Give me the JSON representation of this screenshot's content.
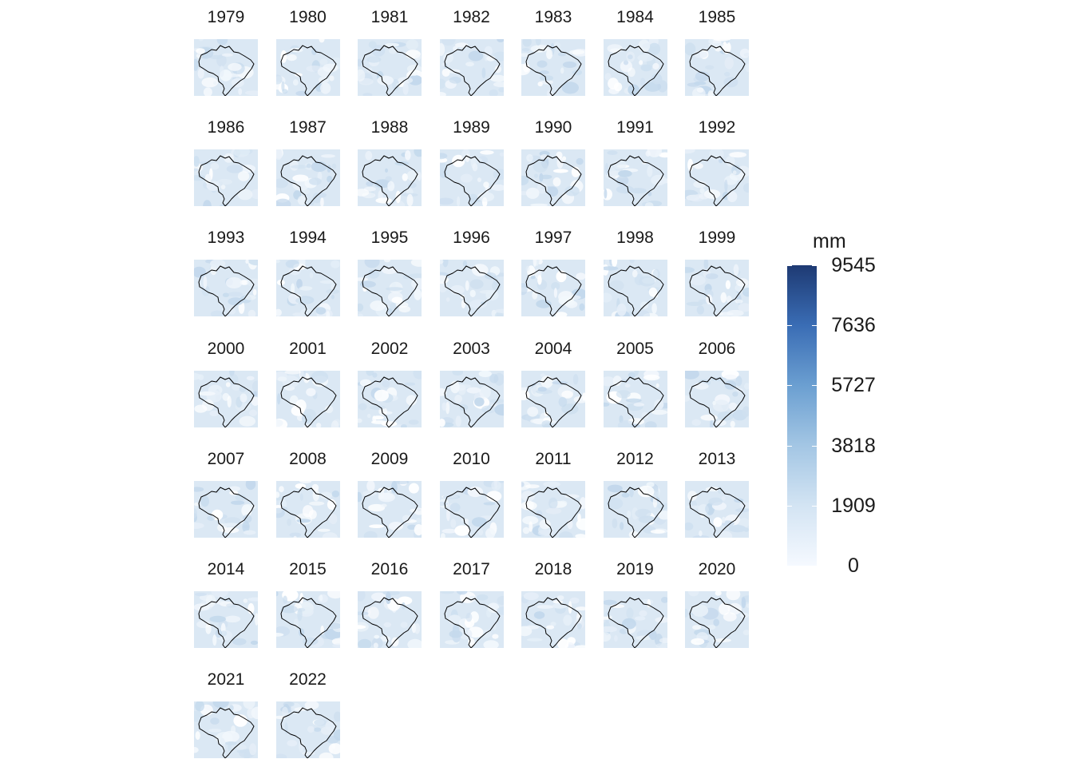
{
  "panels": [
    {
      "year": "1979"
    },
    {
      "year": "1980"
    },
    {
      "year": "1981"
    },
    {
      "year": "1982"
    },
    {
      "year": "1983"
    },
    {
      "year": "1984"
    },
    {
      "year": "1985"
    },
    {
      "year": "1986"
    },
    {
      "year": "1987"
    },
    {
      "year": "1988"
    },
    {
      "year": "1989"
    },
    {
      "year": "1990"
    },
    {
      "year": "1991"
    },
    {
      "year": "1992"
    },
    {
      "year": "1993"
    },
    {
      "year": "1994"
    },
    {
      "year": "1995"
    },
    {
      "year": "1996"
    },
    {
      "year": "1997"
    },
    {
      "year": "1998"
    },
    {
      "year": "1999"
    },
    {
      "year": "2000"
    },
    {
      "year": "2001"
    },
    {
      "year": "2002"
    },
    {
      "year": "2003"
    },
    {
      "year": "2004"
    },
    {
      "year": "2005"
    },
    {
      "year": "2006"
    },
    {
      "year": "2007"
    },
    {
      "year": "2008"
    },
    {
      "year": "2009"
    },
    {
      "year": "2010"
    },
    {
      "year": "2011"
    },
    {
      "year": "2012"
    },
    {
      "year": "2013"
    },
    {
      "year": "2014"
    },
    {
      "year": "2015"
    },
    {
      "year": "2016"
    },
    {
      "year": "2017"
    },
    {
      "year": "2018"
    },
    {
      "year": "2019"
    },
    {
      "year": "2020"
    },
    {
      "year": "2021"
    },
    {
      "year": "2022"
    }
  ],
  "legend": {
    "title": "mm",
    "min": 0,
    "max": 9545,
    "ticks": [
      "9545",
      "7636",
      "5727",
      "3818",
      "1909",
      "0"
    ],
    "colors": {
      "low": "#f5f9ff",
      "mid": "#6b9fd1",
      "high": "#1e3a73"
    }
  },
  "map": {
    "outline_color": "#000000",
    "background_color": "#dbe8f4"
  }
}
